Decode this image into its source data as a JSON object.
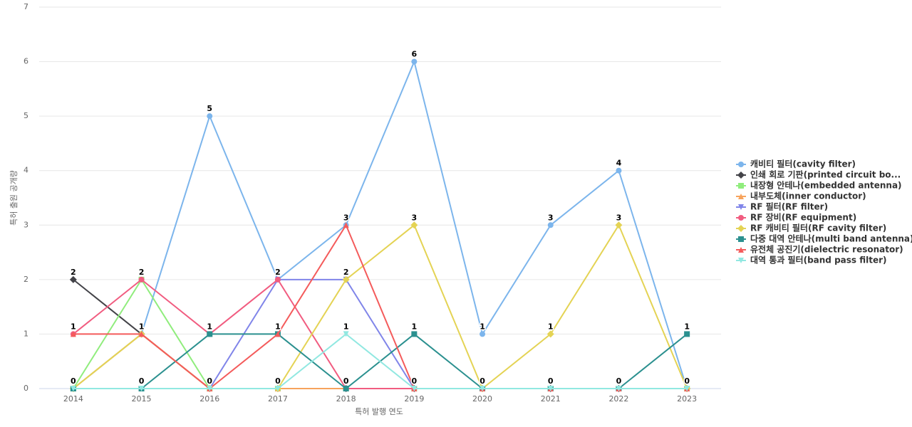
{
  "chart_data": {
    "type": "line",
    "x_label": "특허 발행 연도",
    "y_label": "특허 출원 공개량",
    "categories": [
      "2014",
      "2015",
      "2016",
      "2017",
      "2018",
      "2019",
      "2020",
      "2021",
      "2022",
      "2023"
    ],
    "ylim": [
      0,
      7
    ],
    "yticks": [
      0,
      1,
      2,
      3,
      4,
      5,
      6,
      7
    ],
    "grid": true,
    "legend": "right",
    "series": [
      {
        "name": "캐비티 필터(cavity filter)",
        "color": "#7cb5ec",
        "marker": "circle",
        "values": [
          0,
          1,
          5,
          2,
          3,
          6,
          1,
          3,
          4,
          0
        ]
      },
      {
        "name": "인쇄 회로 기판(printed circuit bo...",
        "color": "#434348",
        "marker": "diamond",
        "values": [
          2,
          1,
          0,
          0,
          0,
          0,
          0,
          0,
          0,
          0
        ]
      },
      {
        "name": "내장형 안테나(embedded antenna)",
        "color": "#90ed7d",
        "marker": "square",
        "values": [
          0,
          2,
          0,
          0,
          0,
          0,
          0,
          0,
          0,
          0
        ]
      },
      {
        "name": "내부도체(inner conductor)",
        "color": "#f7a35c",
        "marker": "triangle",
        "values": [
          0,
          1,
          0,
          0,
          0,
          0,
          0,
          0,
          0,
          0
        ]
      },
      {
        "name": "RF 필터(RF filter)",
        "color": "#8085e9",
        "marker": "triangle-down",
        "values": [
          0,
          0,
          0,
          2,
          2,
          0,
          0,
          0,
          0,
          0
        ]
      },
      {
        "name": "RF 장비(RF equipment)",
        "color": "#f15c80",
        "marker": "circle",
        "values": [
          1,
          2,
          1,
          2,
          0,
          0,
          0,
          0,
          0,
          0
        ]
      },
      {
        "name": "RF 캐비티 필터(RF cavity filter)",
        "color": "#e4d354",
        "marker": "diamond",
        "values": [
          0,
          1,
          0,
          0,
          2,
          3,
          0,
          1,
          3,
          0
        ]
      },
      {
        "name": "다중 대역 안테나(multi band antenna)",
        "color": "#2b908f",
        "marker": "square",
        "values": [
          0,
          0,
          1,
          1,
          0,
          1,
          0,
          0,
          0,
          1
        ]
      },
      {
        "name": "유전체 공진기(dielectric resonator)",
        "color": "#f45b5b",
        "marker": "triangle",
        "values": [
          1,
          1,
          0,
          1,
          3,
          0,
          0,
          0,
          0,
          0
        ]
      },
      {
        "name": "대역 통과 필터(band pass filter)",
        "color": "#91e8e1",
        "marker": "triangle-down",
        "values": [
          0,
          0,
          0,
          0,
          1,
          0,
          0,
          0,
          0,
          0
        ]
      }
    ]
  }
}
